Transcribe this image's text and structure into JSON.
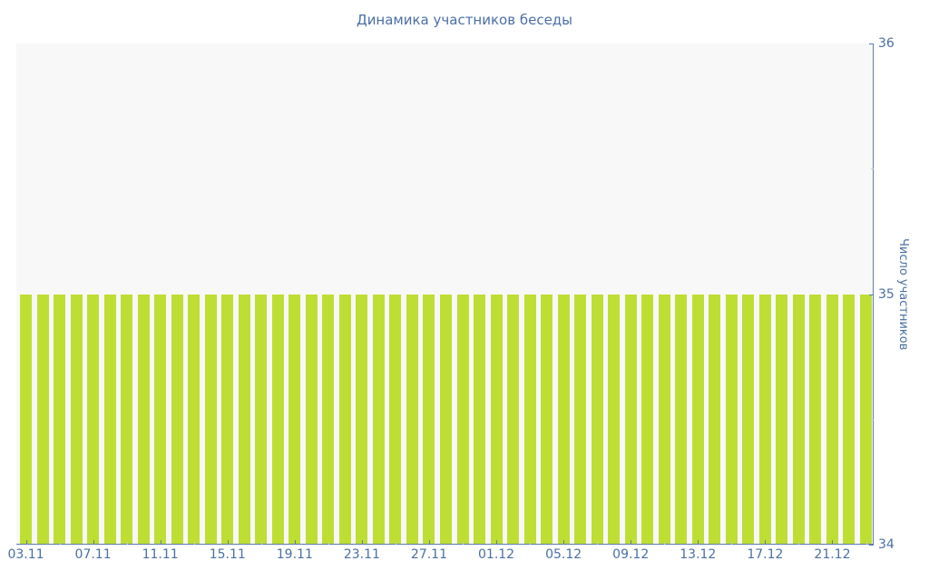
{
  "colors": {
    "bar_color": "#bede34",
    "plot_bg": "#f8f8f8",
    "axis_color": "#5d7cb0",
    "text_color": "#4a6fa5",
    "minor_tick_color": "#c9c9c9",
    "page_bg": "#ffffff"
  },
  "chart_data": {
    "type": "bar",
    "title": "Динамика участников беседы",
    "xlabel": "",
    "ylabel": "Число участников",
    "ylim": [
      34,
      36
    ],
    "grid": false,
    "legend_position": "none",
    "y_axis_position": "right",
    "x_axis_position": "bottom",
    "y_major_ticks": [
      36,
      35,
      34
    ],
    "y_minor_ticks": [
      35.5,
      34.5
    ],
    "x_major_tick_every": 4,
    "x_major_tick_labels": [
      "03.11",
      "07.11",
      "11.11",
      "15.11",
      "19.11",
      "23.11",
      "27.11",
      "01.12",
      "05.12",
      "09.12",
      "13.12",
      "17.12",
      "21.12"
    ],
    "x": [
      "03.11",
      "04.11",
      "05.11",
      "06.11",
      "07.11",
      "08.11",
      "09.11",
      "10.11",
      "11.11",
      "12.11",
      "13.11",
      "14.11",
      "15.11",
      "16.11",
      "17.11",
      "18.11",
      "19.11",
      "20.11",
      "21.11",
      "22.11",
      "23.11",
      "24.11",
      "25.11",
      "26.11",
      "27.11",
      "28.11",
      "29.11",
      "30.11",
      "01.12",
      "02.12",
      "03.12",
      "04.12",
      "05.12",
      "06.12",
      "07.12",
      "08.12",
      "09.12",
      "10.12",
      "11.12",
      "12.12",
      "13.12",
      "14.12",
      "15.12",
      "16.12",
      "17.12",
      "18.12",
      "19.12",
      "20.12",
      "21.12",
      "22.12",
      "23.12"
    ],
    "values": [
      35,
      35,
      35,
      35,
      35,
      35,
      35,
      35,
      35,
      35,
      35,
      35,
      35,
      35,
      35,
      35,
      35,
      35,
      35,
      35,
      35,
      35,
      35,
      35,
      35,
      35,
      35,
      35,
      35,
      35,
      35,
      35,
      35,
      35,
      35,
      35,
      35,
      35,
      35,
      35,
      35,
      35,
      35,
      35,
      35,
      35,
      35,
      35,
      35,
      35,
      35
    ]
  }
}
